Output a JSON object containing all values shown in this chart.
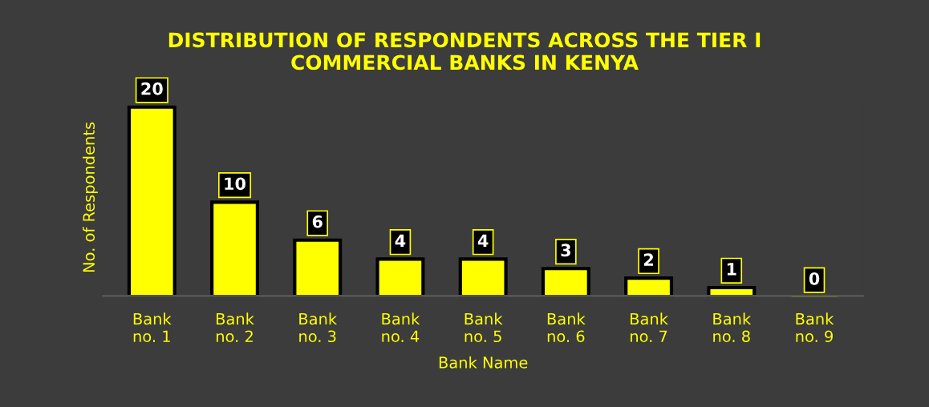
{
  "chart_data": {
    "type": "bar",
    "title": "DISTRIBUTION OF RESPONDENTS ACROSS THE TIER I\nCOMMERCIAL BANKS IN KENYA",
    "xlabel": "Bank Name",
    "ylabel": "No. of Respondents",
    "categories": [
      "Bank\nno. 1",
      "Bank\nno. 2",
      "Bank\nno. 3",
      "Bank\nno. 4",
      "Bank\nno. 5",
      "Bank\nno. 6",
      "Bank\nno. 7",
      "Bank\nno. 8",
      "Bank\nno. 9"
    ],
    "values": [
      20,
      10,
      6,
      4,
      4,
      3,
      2,
      1,
      0
    ],
    "color": "#ffff00",
    "data_labels": true,
    "grid": false,
    "legend": false
  }
}
